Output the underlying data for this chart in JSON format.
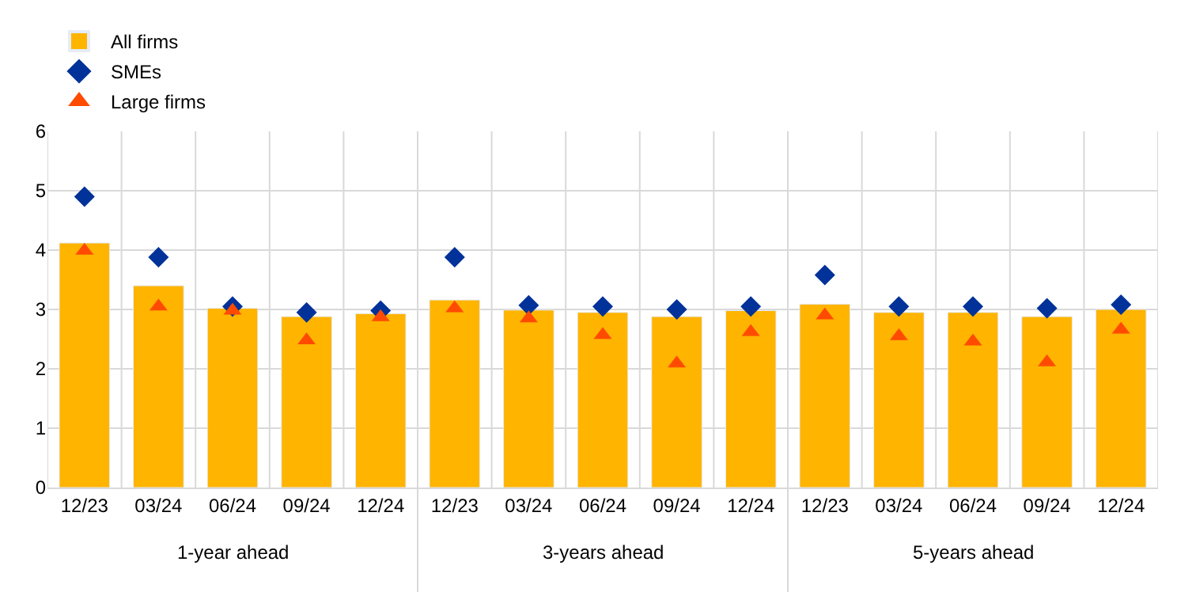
{
  "chart_data": {
    "type": "bar",
    "categories": [
      "12/23",
      "03/24",
      "06/24",
      "09/24",
      "12/24",
      "12/23",
      "03/24",
      "06/24",
      "09/24",
      "12/24",
      "12/23",
      "03/24",
      "06/24",
      "09/24",
      "12/24"
    ],
    "series": [
      {
        "name": "All firms",
        "color": "#ffb400",
        "values": [
          4.12,
          3.4,
          3.02,
          2.88,
          2.93,
          3.16,
          2.99,
          2.95,
          2.88,
          2.98,
          3.09,
          2.95,
          2.95,
          2.88,
          3.0
        ]
      },
      {
        "name": "SMEs",
        "type": "scatter",
        "marker": "diamond",
        "color": "#003299",
        "values": [
          4.9,
          3.88,
          3.05,
          2.95,
          2.98,
          3.88,
          3.07,
          3.05,
          3.0,
          3.05,
          3.58,
          3.05,
          3.05,
          3.02,
          3.08
        ]
      },
      {
        "name": "Large firms",
        "type": "scatter",
        "marker": "triangle",
        "color": "#ff4b00",
        "values": [
          3.99,
          3.05,
          2.98,
          2.48,
          2.87,
          3.02,
          2.85,
          2.57,
          2.09,
          2.62,
          2.9,
          2.55,
          2.46,
          2.11,
          2.66
        ]
      }
    ],
    "annotations": [
      "1-year ahead",
      "3-years ahead",
      "5-years ahead"
    ],
    "ylim": [
      0,
      6
    ],
    "yticks": [
      0,
      1,
      2,
      3,
      4,
      5,
      6
    ],
    "grid": true,
    "legend": "top left"
  }
}
